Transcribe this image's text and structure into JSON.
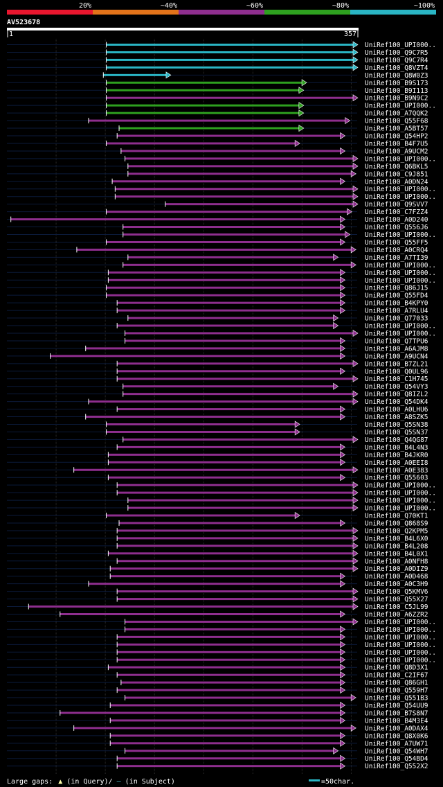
{
  "chart_data": {
    "type": "alignment-coverage",
    "query_id": "AV523678",
    "query_length": 357,
    "axis": {
      "start": 1,
      "end": 357,
      "start_label": "1",
      "end_label": "357"
    },
    "identity_legend": [
      {
        "label": "20%",
        "color": "#e8162e"
      },
      {
        "label": "~40%",
        "color": "#e2731a"
      },
      {
        "label": "~60%",
        "color": "#8e2e8e"
      },
      {
        "label": "~80%",
        "color": "#2ea01f"
      },
      {
        "label": "~100%",
        "color": "#2ab5c4"
      }
    ],
    "footer": {
      "gaps_prefix": "Large gaps:",
      "gaps_query": "(in Query)/",
      "gaps_subject": "(in Subject)",
      "scale_label": "=50char."
    },
    "hits": [
      {
        "name": "UniRef100_UPI000..",
        "start": 102,
        "end": 357,
        "identity": "~100%",
        "ext_left": true,
        "ext_right": false
      },
      {
        "name": "UniRef100_Q9C7R5",
        "start": 102,
        "end": 357,
        "identity": "~100%",
        "ext_left": true,
        "ext_right": false
      },
      {
        "name": "UniRef100_Q9C7R4",
        "start": 102,
        "end": 357,
        "identity": "~100%",
        "ext_left": true,
        "ext_right": false
      },
      {
        "name": "UniRef100_Q8VZT4",
        "start": 102,
        "end": 357,
        "identity": "~100%",
        "ext_left": true,
        "ext_right": false
      },
      {
        "name": "UniRef100_Q8W0Z3",
        "start": 99,
        "end": 167,
        "identity": "~100%",
        "ext_left": true,
        "ext_right": false
      },
      {
        "name": "UniRef100_B9S173",
        "start": 102,
        "end": 305,
        "identity": "~80%",
        "ext_left": true,
        "ext_right": false
      },
      {
        "name": "UniRef100_B9I113",
        "start": 102,
        "end": 302,
        "identity": "~80%",
        "ext_left": true,
        "ext_right": false
      },
      {
        "name": "UniRef100_B9N9C2",
        "start": 102,
        "end": 357,
        "identity": "~60%",
        "ext_left": true,
        "ext_right": false
      },
      {
        "name": "UniRef100_UPI000..",
        "start": 102,
        "end": 302,
        "identity": "~80%",
        "ext_left": true,
        "ext_right": false
      },
      {
        "name": "UniRef100_A7QQK2",
        "start": 102,
        "end": 302,
        "identity": "~80%",
        "ext_left": true,
        "ext_right": false
      },
      {
        "name": "UniRef100_Q55F68",
        "start": 84,
        "end": 349,
        "identity": "~60%",
        "ext_left": true,
        "ext_right": false
      },
      {
        "name": "UniRef100_A5BT57",
        "start": 115,
        "end": 302,
        "identity": "~80%",
        "ext_left": true,
        "ext_right": false
      },
      {
        "name": "UniRef100_Q54HP2",
        "start": 113,
        "end": 344,
        "identity": "~60%",
        "ext_left": true,
        "ext_right": false
      },
      {
        "name": "UniRef100_B4F7U5",
        "start": 102,
        "end": 298,
        "identity": "~60%",
        "ext_left": true,
        "ext_right": false
      },
      {
        "name": "UniRef100_A9UCM2",
        "start": 117,
        "end": 344,
        "identity": "~60%",
        "ext_left": true,
        "ext_right": false
      },
      {
        "name": "UniRef100_UPI000..",
        "start": 121,
        "end": 357,
        "identity": "~60%",
        "ext_left": true,
        "ext_right": false
      },
      {
        "name": "UniRef100_Q6BKL5",
        "start": 124,
        "end": 357,
        "identity": "~60%",
        "ext_left": true,
        "ext_right": false
      },
      {
        "name": "UniRef100_C9J851",
        "start": 124,
        "end": 355,
        "identity": "~60%",
        "ext_left": true,
        "ext_right": false
      },
      {
        "name": "UniRef100_A0DN24",
        "start": 108,
        "end": 344,
        "identity": "~60%",
        "ext_left": true,
        "ext_right": false
      },
      {
        "name": "UniRef100_UPI000..",
        "start": 111,
        "end": 357,
        "identity": "~60%",
        "ext_left": true,
        "ext_right": false
      },
      {
        "name": "UniRef100_UPI000..",
        "start": 111,
        "end": 357,
        "identity": "~60%",
        "ext_left": true,
        "ext_right": false
      },
      {
        "name": "UniRef100_Q9SVV7",
        "start": 162,
        "end": 357,
        "identity": "~60%",
        "ext_left": true,
        "ext_right": false
      },
      {
        "name": "UniRef100_C7FZZ4",
        "start": 102,
        "end": 351,
        "identity": "~60%",
        "ext_left": true,
        "ext_right": false
      },
      {
        "name": "UniRef100_A0D240",
        "start": 5,
        "end": 344,
        "identity": "~60%",
        "ext_left": false,
        "ext_right": false
      },
      {
        "name": "UniRef100_Q556J6",
        "start": 119,
        "end": 344,
        "identity": "~60%",
        "ext_left": true,
        "ext_right": false
      },
      {
        "name": "UniRef100_UPI000..",
        "start": 119,
        "end": 349,
        "identity": "~60%",
        "ext_left": true,
        "ext_right": false
      },
      {
        "name": "UniRef100_Q55FF5",
        "start": 102,
        "end": 344,
        "identity": "~60%",
        "ext_left": true,
        "ext_right": false
      },
      {
        "name": "UniRef100_A0CRQ4",
        "start": 72,
        "end": 355,
        "identity": "~60%",
        "ext_left": true,
        "ext_right": false
      },
      {
        "name": "UniRef100_A7TI39",
        "start": 124,
        "end": 337,
        "identity": "~60%",
        "ext_left": true,
        "ext_right": false
      },
      {
        "name": "UniRef100_UPI000..",
        "start": 119,
        "end": 355,
        "identity": "~60%",
        "ext_left": true,
        "ext_right": false
      },
      {
        "name": "UniRef100_UPI000..",
        "start": 104,
        "end": 344,
        "identity": "~60%",
        "ext_left": true,
        "ext_right": false
      },
      {
        "name": "UniRef100_UPI000..",
        "start": 104,
        "end": 344,
        "identity": "~60%",
        "ext_left": true,
        "ext_right": false
      },
      {
        "name": "UniRef100_Q86J15",
        "start": 102,
        "end": 344,
        "identity": "~60%",
        "ext_left": true,
        "ext_right": false
      },
      {
        "name": "UniRef100_Q55FD4",
        "start": 102,
        "end": 344,
        "identity": "~60%",
        "ext_left": true,
        "ext_right": false
      },
      {
        "name": "UniRef100_B4KPY0",
        "start": 113,
        "end": 344,
        "identity": "~60%",
        "ext_left": true,
        "ext_right": false
      },
      {
        "name": "UniRef100_A7RLU4",
        "start": 113,
        "end": 344,
        "identity": "~60%",
        "ext_left": true,
        "ext_right": false
      },
      {
        "name": "UniRef100_Q77033",
        "start": 124,
        "end": 337,
        "identity": "~60%",
        "ext_left": true,
        "ext_right": false
      },
      {
        "name": "UniRef100_UPI000..",
        "start": 113,
        "end": 337,
        "identity": "~60%",
        "ext_left": true,
        "ext_right": false
      },
      {
        "name": "UniRef100_UPI000..",
        "start": 121,
        "end": 357,
        "identity": "~60%",
        "ext_left": true,
        "ext_right": false
      },
      {
        "name": "UniRef100_Q7TPU6",
        "start": 121,
        "end": 344,
        "identity": "~60%",
        "ext_left": true,
        "ext_right": false
      },
      {
        "name": "UniRef100_A6AJM8",
        "start": 81,
        "end": 344,
        "identity": "~60%",
        "ext_left": true,
        "ext_right": false
      },
      {
        "name": "UniRef100_A9UCN4",
        "start": 45,
        "end": 344,
        "identity": "~60%",
        "ext_left": true,
        "ext_right": false
      },
      {
        "name": "UniRef100_B7ZL21",
        "start": 113,
        "end": 357,
        "identity": "~60%",
        "ext_left": true,
        "ext_right": false
      },
      {
        "name": "UniRef100_Q0UL96",
        "start": 113,
        "end": 344,
        "identity": "~60%",
        "ext_left": true,
        "ext_right": false
      },
      {
        "name": "UniRef100_C1H745",
        "start": 113,
        "end": 357,
        "identity": "~60%",
        "ext_left": true,
        "ext_right": false
      },
      {
        "name": "UniRef100_Q54VY3",
        "start": 119,
        "end": 337,
        "identity": "~60%",
        "ext_left": true,
        "ext_right": false
      },
      {
        "name": "UniRef100_Q8IZL2",
        "start": 119,
        "end": 357,
        "identity": "~60%",
        "ext_left": true,
        "ext_right": false
      },
      {
        "name": "UniRef100_Q54DK4",
        "start": 84,
        "end": 357,
        "identity": "~60%",
        "ext_left": true,
        "ext_right": false
      },
      {
        "name": "UniRef100_A0LHU6",
        "start": 113,
        "end": 344,
        "identity": "~60%",
        "ext_left": true,
        "ext_right": false
      },
      {
        "name": "UniRef100_A8SZK5",
        "start": 81,
        "end": 344,
        "identity": "~60%",
        "ext_left": true,
        "ext_right": false
      },
      {
        "name": "UniRef100_Q5SN38",
        "start": 102,
        "end": 298,
        "identity": "~60%",
        "ext_left": true,
        "ext_right": false
      },
      {
        "name": "UniRef100_Q5SN37",
        "start": 102,
        "end": 298,
        "identity": "~60%",
        "ext_left": true,
        "ext_right": false
      },
      {
        "name": "UniRef100_Q4QG87",
        "start": 119,
        "end": 357,
        "identity": "~60%",
        "ext_left": true,
        "ext_right": false
      },
      {
        "name": "UniRef100_B4L4N3",
        "start": 113,
        "end": 344,
        "identity": "~60%",
        "ext_left": true,
        "ext_right": false
      },
      {
        "name": "UniRef100_B4JKR0",
        "start": 104,
        "end": 344,
        "identity": "~60%",
        "ext_left": true,
        "ext_right": false
      },
      {
        "name": "UniRef100_A0EEI8",
        "start": 104,
        "end": 344,
        "identity": "~60%",
        "ext_left": true,
        "ext_right": false
      },
      {
        "name": "UniRef100_A0E383",
        "start": 69,
        "end": 357,
        "identity": "~60%",
        "ext_left": true,
        "ext_right": false
      },
      {
        "name": "UniRef100_Q55603",
        "start": 104,
        "end": 344,
        "identity": "~60%",
        "ext_left": true,
        "ext_right": false
      },
      {
        "name": "UniRef100_UPI000..",
        "start": 113,
        "end": 357,
        "identity": "~60%",
        "ext_left": true,
        "ext_right": false
      },
      {
        "name": "UniRef100_UPI000..",
        "start": 113,
        "end": 357,
        "identity": "~60%",
        "ext_left": true,
        "ext_right": false
      },
      {
        "name": "UniRef100_UPI000..",
        "start": 124,
        "end": 357,
        "identity": "~60%",
        "ext_left": true,
        "ext_right": false
      },
      {
        "name": "UniRef100_UPI000..",
        "start": 124,
        "end": 357,
        "identity": "~60%",
        "ext_left": true,
        "ext_right": false
      },
      {
        "name": "UniRef100_Q70KT1",
        "start": 102,
        "end": 298,
        "identity": "~60%",
        "ext_left": true,
        "ext_right": false
      },
      {
        "name": "UniRef100_Q868S9",
        "start": 115,
        "end": 344,
        "identity": "~60%",
        "ext_left": true,
        "ext_right": false
      },
      {
        "name": "UniRef100_Q2KPM5",
        "start": 113,
        "end": 357,
        "identity": "~60%",
        "ext_left": true,
        "ext_right": false
      },
      {
        "name": "UniRef100_B4L6X0",
        "start": 113,
        "end": 357,
        "identity": "~60%",
        "ext_left": true,
        "ext_right": false
      },
      {
        "name": "UniRef100_B4L208",
        "start": 113,
        "end": 357,
        "identity": "~60%",
        "ext_left": true,
        "ext_right": false
      },
      {
        "name": "UniRef100_B4L0X1",
        "start": 104,
        "end": 357,
        "identity": "~60%",
        "ext_left": true,
        "ext_right": false
      },
      {
        "name": "UniRef100_A0NFH8",
        "start": 113,
        "end": 357,
        "identity": "~60%",
        "ext_left": true,
        "ext_right": false
      },
      {
        "name": "UniRef100_A0DIZ9",
        "start": 106,
        "end": 357,
        "identity": "~60%",
        "ext_left": true,
        "ext_right": false
      },
      {
        "name": "UniRef100_A0D468",
        "start": 106,
        "end": 344,
        "identity": "~60%",
        "ext_left": true,
        "ext_right": false
      },
      {
        "name": "UniRef100_A0C3H9",
        "start": 84,
        "end": 344,
        "identity": "~60%",
        "ext_left": true,
        "ext_right": false
      },
      {
        "name": "UniRef100_Q5KMV6",
        "start": 113,
        "end": 357,
        "identity": "~60%",
        "ext_left": true,
        "ext_right": false
      },
      {
        "name": "UniRef100_Q55X27",
        "start": 113,
        "end": 357,
        "identity": "~60%",
        "ext_left": true,
        "ext_right": false
      },
      {
        "name": "UniRef100_C5JL99",
        "start": 23,
        "end": 357,
        "identity": "~60%",
        "ext_left": true,
        "ext_right": false
      },
      {
        "name": "UniRef100_A6ZZR2",
        "start": 55,
        "end": 344,
        "identity": "~60%",
        "ext_left": true,
        "ext_right": false
      },
      {
        "name": "UniRef100_UPI000..",
        "start": 121,
        "end": 357,
        "identity": "~60%",
        "ext_left": true,
        "ext_right": false
      },
      {
        "name": "UniRef100_UPI000..",
        "start": 121,
        "end": 344,
        "identity": "~60%",
        "ext_left": true,
        "ext_right": false
      },
      {
        "name": "UniRef100_UPI000..",
        "start": 113,
        "end": 344,
        "identity": "~60%",
        "ext_left": true,
        "ext_right": false
      },
      {
        "name": "UniRef100_UPI000..",
        "start": 113,
        "end": 344,
        "identity": "~60%",
        "ext_left": true,
        "ext_right": false
      },
      {
        "name": "UniRef100_UPI000..",
        "start": 113,
        "end": 344,
        "identity": "~60%",
        "ext_left": true,
        "ext_right": false
      },
      {
        "name": "UniRef100_UPI000..",
        "start": 113,
        "end": 344,
        "identity": "~60%",
        "ext_left": true,
        "ext_right": false
      },
      {
        "name": "UniRef100_Q8D3X1",
        "start": 104,
        "end": 344,
        "identity": "~60%",
        "ext_left": true,
        "ext_right": false
      },
      {
        "name": "UniRef100_C2IF67",
        "start": 113,
        "end": 344,
        "identity": "~60%",
        "ext_left": true,
        "ext_right": false
      },
      {
        "name": "UniRef100_Q86GH1",
        "start": 117,
        "end": 344,
        "identity": "~60%",
        "ext_left": true,
        "ext_right": false
      },
      {
        "name": "UniRef100_Q559H7",
        "start": 113,
        "end": 344,
        "identity": "~60%",
        "ext_left": true,
        "ext_right": false
      },
      {
        "name": "UniRef100_Q551B3",
        "start": 121,
        "end": 355,
        "identity": "~60%",
        "ext_left": true,
        "ext_right": false
      },
      {
        "name": "UniRef100_Q54UU9",
        "start": 106,
        "end": 344,
        "identity": "~60%",
        "ext_left": true,
        "ext_right": false
      },
      {
        "name": "UniRef100_B7S8N7",
        "start": 55,
        "end": 344,
        "identity": "~60%",
        "ext_left": true,
        "ext_right": false
      },
      {
        "name": "UniRef100_B4M3E4",
        "start": 106,
        "end": 344,
        "identity": "~60%",
        "ext_left": true,
        "ext_right": false
      },
      {
        "name": "UniRef100_A0DAX4",
        "start": 69,
        "end": 355,
        "identity": "~60%",
        "ext_left": true,
        "ext_right": false
      },
      {
        "name": "UniRef100_Q8X0K6",
        "start": 106,
        "end": 344,
        "identity": "~60%",
        "ext_left": true,
        "ext_right": false
      },
      {
        "name": "UniRef100_A7UW71",
        "start": 106,
        "end": 344,
        "identity": "~60%",
        "ext_left": true,
        "ext_right": false
      },
      {
        "name": "UniRef100_Q54WH7",
        "start": 121,
        "end": 337,
        "identity": "~60%",
        "ext_left": true,
        "ext_right": false
      },
      {
        "name": "UniRef100_Q54BD4",
        "start": 113,
        "end": 344,
        "identity": "~60%",
        "ext_left": true,
        "ext_right": false
      },
      {
        "name": "UniRef100_Q552X2",
        "start": 113,
        "end": 344,
        "identity": "~60%",
        "ext_left": true,
        "ext_right": false
      }
    ]
  }
}
